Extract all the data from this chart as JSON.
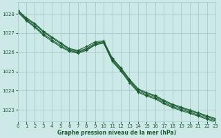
{
  "title": "Graphe pression niveau de la mer (hPa)",
  "background_color": "#cce9e8",
  "grid_color": "#aacfcf",
  "line_color": "#1a5c30",
  "xlim": [
    0,
    23
  ],
  "ylim": [
    1022.4,
    1028.6
  ],
  "yticks": [
    1023,
    1024,
    1025,
    1026,
    1027,
    1028
  ],
  "xticks": [
    0,
    1,
    2,
    3,
    4,
    5,
    6,
    7,
    8,
    9,
    10,
    11,
    12,
    13,
    14,
    15,
    16,
    17,
    18,
    19,
    20,
    21,
    22,
    23
  ],
  "series": [
    [
      1028.2,
      1027.8,
      1027.5,
      1027.1,
      1026.8,
      1026.5,
      1026.2,
      1026.1,
      1026.3,
      1026.55,
      1026.6,
      1025.7,
      1025.2,
      1024.6,
      1024.1,
      1023.9,
      1023.75,
      1023.5,
      1023.3,
      1023.15,
      1023.0,
      1022.85,
      1022.7,
      1022.55
    ],
    [
      1028.2,
      1027.75,
      1027.45,
      1027.05,
      1026.75,
      1026.45,
      1026.15,
      1026.05,
      1026.2,
      1026.48,
      1026.55,
      1025.65,
      1025.15,
      1024.55,
      1024.05,
      1023.85,
      1023.7,
      1023.45,
      1023.25,
      1023.1,
      1022.95,
      1022.8,
      1022.65,
      1022.5
    ],
    [
      1028.15,
      1027.7,
      1027.35,
      1026.95,
      1026.65,
      1026.35,
      1026.1,
      1026.0,
      1026.15,
      1026.42,
      1026.5,
      1025.58,
      1025.08,
      1024.48,
      1023.98,
      1023.78,
      1023.63,
      1023.38,
      1023.18,
      1023.03,
      1022.88,
      1022.73,
      1022.58,
      1022.43
    ],
    [
      1028.1,
      1027.65,
      1027.3,
      1026.88,
      1026.58,
      1026.28,
      1026.05,
      1025.95,
      1026.1,
      1026.38,
      1026.48,
      1025.52,
      1025.02,
      1024.42,
      1023.92,
      1023.72,
      1023.57,
      1023.32,
      1023.12,
      1022.97,
      1022.82,
      1022.67,
      1022.52,
      1022.37
    ]
  ]
}
